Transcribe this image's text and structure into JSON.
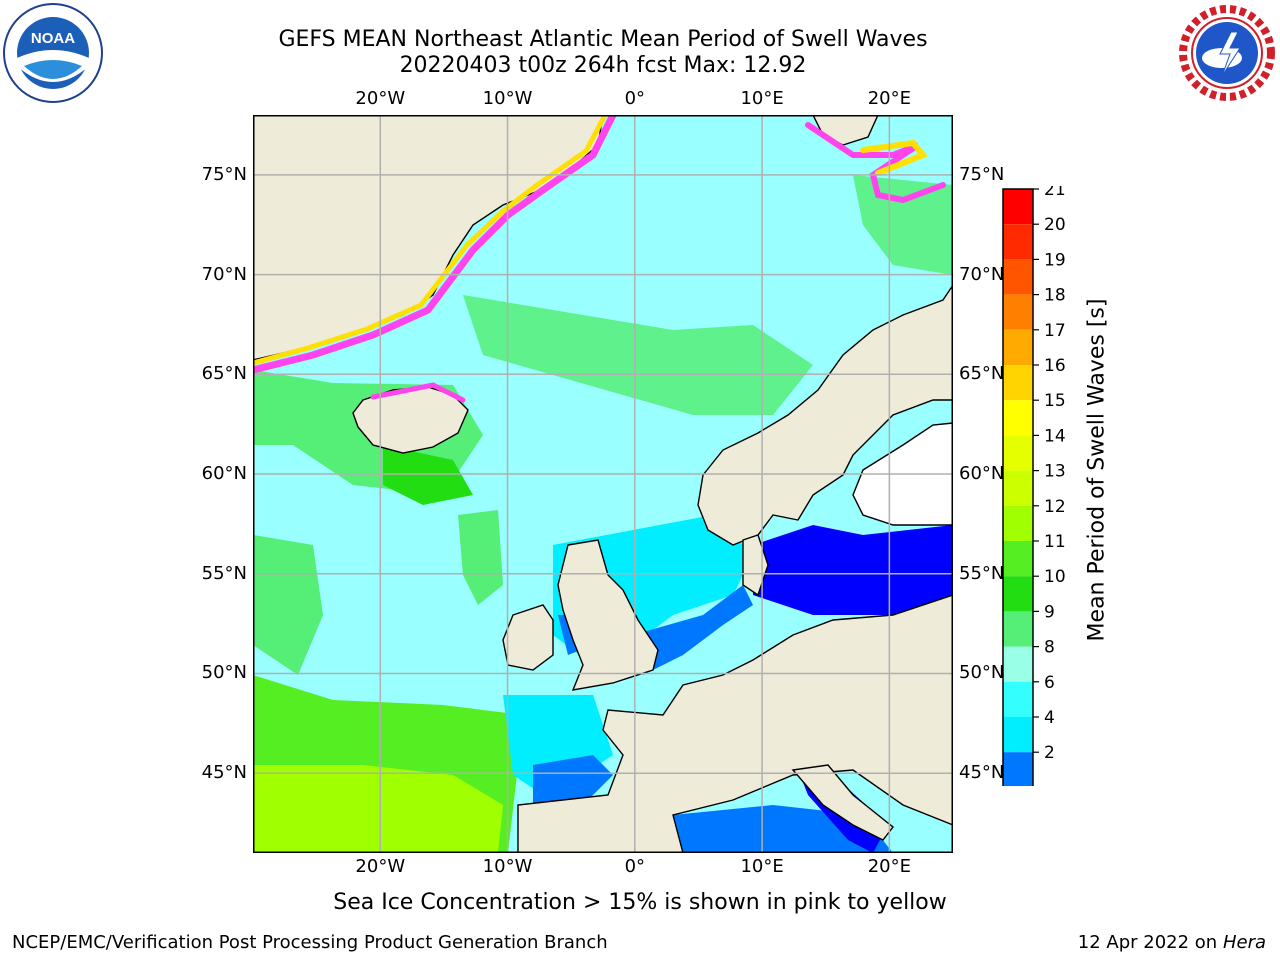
{
  "header": {
    "title_line1": "GEFS MEAN Northeast Atlantic Mean Period of Swell Waves",
    "title_line2": "20220403 t00z 264h fcst   Max: 12.92"
  },
  "logos": {
    "noaa": "NOAA",
    "noaa_ring": "NATIONAL OCEANIC AND ATMOSPHERIC ADMINISTRATION · U.S. DEPARTMENT OF COMMERCE",
    "nws_ring": "NATIONAL WEATHER SERVICE"
  },
  "map": {
    "lon_labels": [
      "20°W",
      "10°W",
      "0°",
      "10°E",
      "20°E"
    ],
    "lon_values": [
      -20,
      -10,
      0,
      10,
      20
    ],
    "lat_labels": [
      "75°N",
      "70°N",
      "65°N",
      "60°N",
      "55°N",
      "50°N",
      "45°N"
    ],
    "lat_values": [
      75,
      70,
      65,
      60,
      55,
      50,
      45
    ],
    "lon_range": [
      -30,
      25
    ],
    "lat_range": [
      41,
      78
    ],
    "land_color": "#eeebd9",
    "grid_color": "#b0b0b0"
  },
  "colorbar": {
    "label": "Mean Period of Swell Waves [s]",
    "ticks": [
      "21",
      "20",
      "19",
      "18",
      "17",
      "16",
      "15",
      "14",
      "13",
      "12",
      "11",
      "10",
      "9",
      "8",
      "6",
      "4",
      "2"
    ],
    "colors": [
      "#ff0000",
      "#ff2a00",
      "#ff5500",
      "#ff8000",
      "#ffaa00",
      "#ffd400",
      "#ffff00",
      "#e6ff00",
      "#ccff00",
      "#a0ff00",
      "#55ee22",
      "#22dd11",
      "#55ee77",
      "#99ffe6",
      "#33ffff",
      "#00eeff",
      "#0077ff"
    ],
    "under_color": "#0000ff"
  },
  "sea_colors": {
    "period_8_9": "#99ffff",
    "period_9_10": "#55ee77",
    "period_10_11": "#22dd11",
    "period_11_12": "#55ee22",
    "period_12_13": "#a0ff00",
    "period_6_8": "#33ffff",
    "period_4_6": "#00eeff",
    "period_2_4": "#0077ff",
    "period_below_2": "#0000ff",
    "sea_ice_pink": "#ff44ee",
    "sea_ice_yellow": "#ffe000"
  },
  "caption": "Sea Ice Concentration > 15% is shown in pink to yellow",
  "footer": {
    "left": "NCEP/EMC/Verification Post Processing Product Generation Branch",
    "right_prefix": "12 Apr 2022 on ",
    "right_italic": "Hera"
  }
}
